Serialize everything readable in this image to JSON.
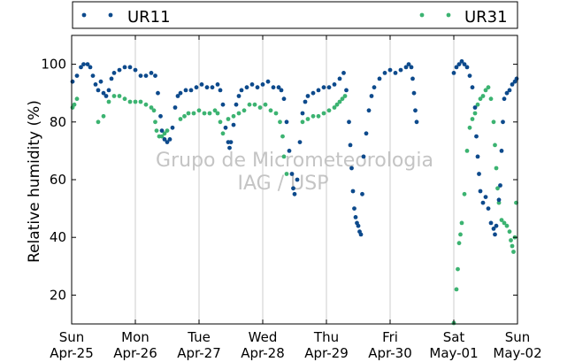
{
  "chart_data": {
    "type": "scatter",
    "title": "",
    "ylabel": "Relative humidity (%)",
    "xlabel": "",
    "xlim": [
      "2010-04-25 00:00",
      "2010-05-02 00:00"
    ],
    "ylim": [
      10,
      110
    ],
    "yticks": [
      20,
      40,
      60,
      80,
      100
    ],
    "xticks": [
      {
        "day": "Sun",
        "date": "Apr-25"
      },
      {
        "day": "Mon",
        "date": "Apr-26"
      },
      {
        "day": "Tue",
        "date": "Apr-27"
      },
      {
        "day": "Wed",
        "date": "Apr-28"
      },
      {
        "day": "Thu",
        "date": "Apr-29"
      },
      {
        "day": "Fri",
        "date": "Apr-30"
      },
      {
        "day": "Sat",
        "date": "May-01"
      },
      {
        "day": "Sun",
        "date": "May-02"
      }
    ],
    "grid": "vertical",
    "legend_position": "top",
    "watermark": [
      "Grupo de Micrometeorologia",
      "IAG / USP"
    ],
    "series": [
      {
        "name": "UR11",
        "color": "#0d4a8c",
        "points": [
          [
            "2010-04-25 00:00",
            94
          ],
          [
            "2010-04-25 02:00",
            96
          ],
          [
            "2010-04-25 03:30",
            99
          ],
          [
            "2010-04-25 04:30",
            100
          ],
          [
            "2010-04-25 06:00",
            100
          ],
          [
            "2010-04-25 07:00",
            99
          ],
          [
            "2010-04-25 08:00",
            96
          ],
          [
            "2010-04-25 09:00",
            93
          ],
          [
            "2010-04-25 10:00",
            91
          ],
          [
            "2010-04-25 11:00",
            94
          ],
          [
            "2010-04-25 12:00",
            90
          ],
          [
            "2010-04-25 13:00",
            89
          ],
          [
            "2010-04-25 14:00",
            91
          ],
          [
            "2010-04-25 15:00",
            95
          ],
          [
            "2010-04-25 16:00",
            97
          ],
          [
            "2010-04-25 18:00",
            98
          ],
          [
            "2010-04-25 20:00",
            99
          ],
          [
            "2010-04-25 22:00",
            99
          ],
          [
            "2010-04-26 00:00",
            98
          ],
          [
            "2010-04-26 02:00",
            96
          ],
          [
            "2010-04-26 04:00",
            96
          ],
          [
            "2010-04-26 06:00",
            97
          ],
          [
            "2010-04-26 07:30",
            96
          ],
          [
            "2010-04-26 08:30",
            90
          ],
          [
            "2010-04-26 09:30",
            82
          ],
          [
            "2010-04-26 10:00",
            77
          ],
          [
            "2010-04-26 11:00",
            74
          ],
          [
            "2010-04-26 12:00",
            73
          ],
          [
            "2010-04-26 13:00",
            74
          ],
          [
            "2010-04-26 14:00",
            78
          ],
          [
            "2010-04-26 15:00",
            85
          ],
          [
            "2010-04-26 16:00",
            89
          ],
          [
            "2010-04-26 17:00",
            90
          ],
          [
            "2010-04-26 19:00",
            91
          ],
          [
            "2010-04-26 21:00",
            91
          ],
          [
            "2010-04-26 23:00",
            92
          ],
          [
            "2010-04-27 01:00",
            93
          ],
          [
            "2010-04-27 03:00",
            92
          ],
          [
            "2010-04-27 05:00",
            92
          ],
          [
            "2010-04-27 07:00",
            93
          ],
          [
            "2010-04-27 08:00",
            91
          ],
          [
            "2010-04-27 09:00",
            86
          ],
          [
            "2010-04-27 10:00",
            78
          ],
          [
            "2010-04-27 11:00",
            73
          ],
          [
            "2010-04-27 11:30",
            71
          ],
          [
            "2010-04-27 12:00",
            73
          ],
          [
            "2010-04-27 13:00",
            79
          ],
          [
            "2010-04-27 14:00",
            86
          ],
          [
            "2010-04-27 15:00",
            89
          ],
          [
            "2010-04-27 16:00",
            91
          ],
          [
            "2010-04-27 18:00",
            92
          ],
          [
            "2010-04-27 20:00",
            93
          ],
          [
            "2010-04-27 22:00",
            92
          ],
          [
            "2010-04-28 00:00",
            93
          ],
          [
            "2010-04-28 02:00",
            94
          ],
          [
            "2010-04-28 04:00",
            92
          ],
          [
            "2010-04-28 06:00",
            92
          ],
          [
            "2010-04-28 07:00",
            91
          ],
          [
            "2010-04-28 08:00",
            88
          ],
          [
            "2010-04-28 09:00",
            80
          ],
          [
            "2010-04-28 10:00",
            70
          ],
          [
            "2010-04-28 11:00",
            62
          ],
          [
            "2010-04-28 11:30",
            57
          ],
          [
            "2010-04-28 12:00",
            55
          ],
          [
            "2010-04-28 13:00",
            60
          ],
          [
            "2010-04-28 14:00",
            73
          ],
          [
            "2010-04-28 15:00",
            83
          ],
          [
            "2010-04-28 16:00",
            87
          ],
          [
            "2010-04-28 17:00",
            89
          ],
          [
            "2010-04-28 19:00",
            90
          ],
          [
            "2010-04-28 21:00",
            91
          ],
          [
            "2010-04-28 23:00",
            92
          ],
          [
            "2010-04-29 01:00",
            92
          ],
          [
            "2010-04-29 03:00",
            93
          ],
          [
            "2010-04-29 05:00",
            95
          ],
          [
            "2010-04-29 06:30",
            97
          ],
          [
            "2010-04-29 07:30",
            91
          ],
          [
            "2010-04-29 08:30",
            80
          ],
          [
            "2010-04-29 09:00",
            72
          ],
          [
            "2010-04-29 09:30",
            64
          ],
          [
            "2010-04-29 10:00",
            56
          ],
          [
            "2010-04-29 10:30",
            50
          ],
          [
            "2010-04-29 11:00",
            47
          ],
          [
            "2010-04-29 11:30",
            45
          ],
          [
            "2010-04-29 12:00",
            44
          ],
          [
            "2010-04-29 12:30",
            42
          ],
          [
            "2010-04-29 13:00",
            41
          ],
          [
            "2010-04-29 13:30",
            55
          ],
          [
            "2010-04-29 14:00",
            68
          ],
          [
            "2010-04-29 15:00",
            76
          ],
          [
            "2010-04-29 16:00",
            84
          ],
          [
            "2010-04-29 17:00",
            89
          ],
          [
            "2010-04-29 18:00",
            92
          ],
          [
            "2010-04-29 20:00",
            95
          ],
          [
            "2010-04-29 22:00",
            97
          ],
          [
            "2010-04-30 00:00",
            98
          ],
          [
            "2010-04-30 02:00",
            97
          ],
          [
            "2010-04-30 04:00",
            98
          ],
          [
            "2010-04-30 06:00",
            99
          ],
          [
            "2010-04-30 07:00",
            100
          ],
          [
            "2010-04-30 08:00",
            99
          ],
          [
            "2010-04-30 08:30",
            95
          ],
          [
            "2010-04-30 09:00",
            90
          ],
          [
            "2010-04-30 09:30",
            84
          ],
          [
            "2010-04-30 10:00",
            80
          ],
          [
            "2010-05-01 00:00",
            97
          ],
          [
            "2010-05-01 01:00",
            99
          ],
          [
            "2010-05-01 02:00",
            100
          ],
          [
            "2010-05-01 03:00",
            101
          ],
          [
            "2010-05-01 04:00",
            100
          ],
          [
            "2010-05-01 05:00",
            99
          ],
          [
            "2010-05-01 06:00",
            96
          ],
          [
            "2010-05-01 07:00",
            92
          ],
          [
            "2010-05-01 08:00",
            85
          ],
          [
            "2010-05-01 08:30",
            75
          ],
          [
            "2010-05-01 09:00",
            68
          ],
          [
            "2010-05-01 09:30",
            62
          ],
          [
            "2010-05-01 10:00",
            56
          ],
          [
            "2010-05-01 11:00",
            52
          ],
          [
            "2010-05-01 12:00",
            54
          ],
          [
            "2010-05-01 13:00",
            50
          ],
          [
            "2010-05-01 14:00",
            45
          ],
          [
            "2010-05-01 15:00",
            43
          ],
          [
            "2010-05-01 15:30",
            41
          ],
          [
            "2010-05-01 16:00",
            44
          ],
          [
            "2010-05-01 17:00",
            53
          ],
          [
            "2010-05-01 17:30",
            58
          ],
          [
            "2010-05-01 18:00",
            70
          ],
          [
            "2010-05-01 18:30",
            80
          ],
          [
            "2010-05-01 19:00",
            88
          ],
          [
            "2010-05-01 20:00",
            90
          ],
          [
            "2010-05-01 21:00",
            91
          ],
          [
            "2010-05-01 22:00",
            93
          ],
          [
            "2010-05-01 23:00",
            94
          ],
          [
            "2010-05-02 00:00",
            95
          ]
        ]
      },
      {
        "name": "UR31",
        "color": "#3cb371",
        "points": [
          [
            "2010-04-25 00:00",
            85
          ],
          [
            "2010-04-25 01:00",
            86
          ],
          [
            "2010-04-25 02:00",
            88
          ],
          [
            "2010-04-25 10:00",
            80
          ],
          [
            "2010-04-25 12:00",
            82
          ],
          [
            "2010-04-25 14:00",
            87
          ],
          [
            "2010-04-25 16:00",
            89
          ],
          [
            "2010-04-25 18:00",
            89
          ],
          [
            "2010-04-25 20:00",
            88
          ],
          [
            "2010-04-25 22:00",
            87
          ],
          [
            "2010-04-26 00:00",
            87
          ],
          [
            "2010-04-26 02:00",
            87
          ],
          [
            "2010-04-26 04:00",
            86
          ],
          [
            "2010-04-26 06:00",
            85
          ],
          [
            "2010-04-26 07:00",
            84
          ],
          [
            "2010-04-26 07:30",
            80
          ],
          [
            "2010-04-26 08:00",
            77
          ],
          [
            "2010-04-26 09:00",
            75
          ],
          [
            "2010-04-26 10:00",
            75
          ],
          [
            "2010-04-26 11:00",
            76
          ],
          [
            "2010-04-26 12:00",
            77
          ],
          [
            "2010-04-26 17:00",
            81
          ],
          [
            "2010-04-26 18:30",
            82
          ],
          [
            "2010-04-26 20:00",
            83
          ],
          [
            "2010-04-26 22:00",
            83
          ],
          [
            "2010-04-27 00:00",
            84
          ],
          [
            "2010-04-27 02:00",
            83
          ],
          [
            "2010-04-27 04:00",
            83
          ],
          [
            "2010-04-27 06:00",
            84
          ],
          [
            "2010-04-27 07:00",
            83
          ],
          [
            "2010-04-27 08:00",
            80
          ],
          [
            "2010-04-27 09:00",
            76
          ],
          [
            "2010-04-27 11:00",
            81
          ],
          [
            "2010-04-27 13:00",
            82
          ],
          [
            "2010-04-27 15:00",
            83
          ],
          [
            "2010-04-27 17:00",
            84
          ],
          [
            "2010-04-27 19:00",
            86
          ],
          [
            "2010-04-27 21:00",
            86
          ],
          [
            "2010-04-27 23:00",
            85
          ],
          [
            "2010-04-28 01:00",
            86
          ],
          [
            "2010-04-28 03:00",
            84
          ],
          [
            "2010-04-28 05:00",
            83
          ],
          [
            "2010-04-28 06:30",
            80
          ],
          [
            "2010-04-28 07:30",
            75
          ],
          [
            "2010-04-28 08:00",
            68
          ],
          [
            "2010-04-28 09:00",
            62
          ],
          [
            "2010-04-28 15:00",
            80
          ],
          [
            "2010-04-28 17:00",
            81
          ],
          [
            "2010-04-28 19:00",
            82
          ],
          [
            "2010-04-28 21:00",
            82
          ],
          [
            "2010-04-28 23:00",
            83
          ],
          [
            "2010-04-29 01:00",
            84
          ],
          [
            "2010-04-29 03:00",
            85
          ],
          [
            "2010-04-29 04:00",
            86
          ],
          [
            "2010-04-29 05:00",
            87
          ],
          [
            "2010-04-29 06:00",
            88
          ],
          [
            "2010-04-29 07:00",
            89
          ],
          [
            "2010-05-01 00:00",
            10
          ],
          [
            "2010-05-01 01:00",
            22
          ],
          [
            "2010-05-01 01:30",
            29
          ],
          [
            "2010-05-01 02:00",
            38
          ],
          [
            "2010-05-01 02:30",
            41
          ],
          [
            "2010-05-01 03:00",
            45
          ],
          [
            "2010-05-01 04:00",
            55
          ],
          [
            "2010-05-01 05:00",
            70
          ],
          [
            "2010-05-01 06:00",
            78
          ],
          [
            "2010-05-01 07:00",
            81
          ],
          [
            "2010-05-01 08:00",
            83
          ],
          [
            "2010-05-01 09:00",
            86
          ],
          [
            "2010-05-01 10:00",
            88
          ],
          [
            "2010-05-01 11:00",
            89
          ],
          [
            "2010-05-01 12:00",
            91
          ],
          [
            "2010-05-01 13:00",
            92
          ],
          [
            "2010-05-01 14:00",
            88
          ],
          [
            "2010-05-01 15:00",
            80
          ],
          [
            "2010-05-01 15:30",
            72
          ],
          [
            "2010-05-01 16:00",
            64
          ],
          [
            "2010-05-01 16:30",
            57
          ],
          [
            "2010-05-01 17:00",
            52
          ],
          [
            "2010-05-01 18:00",
            46
          ],
          [
            "2010-05-01 19:00",
            45
          ],
          [
            "2010-05-01 20:00",
            44
          ],
          [
            "2010-05-01 21:00",
            42
          ],
          [
            "2010-05-01 21:30",
            39
          ],
          [
            "2010-05-01 22:00",
            37
          ],
          [
            "2010-05-01 22:30",
            35
          ],
          [
            "2010-05-01 23:00",
            40
          ],
          [
            "2010-05-01 23:30",
            52
          ]
        ]
      }
    ]
  }
}
